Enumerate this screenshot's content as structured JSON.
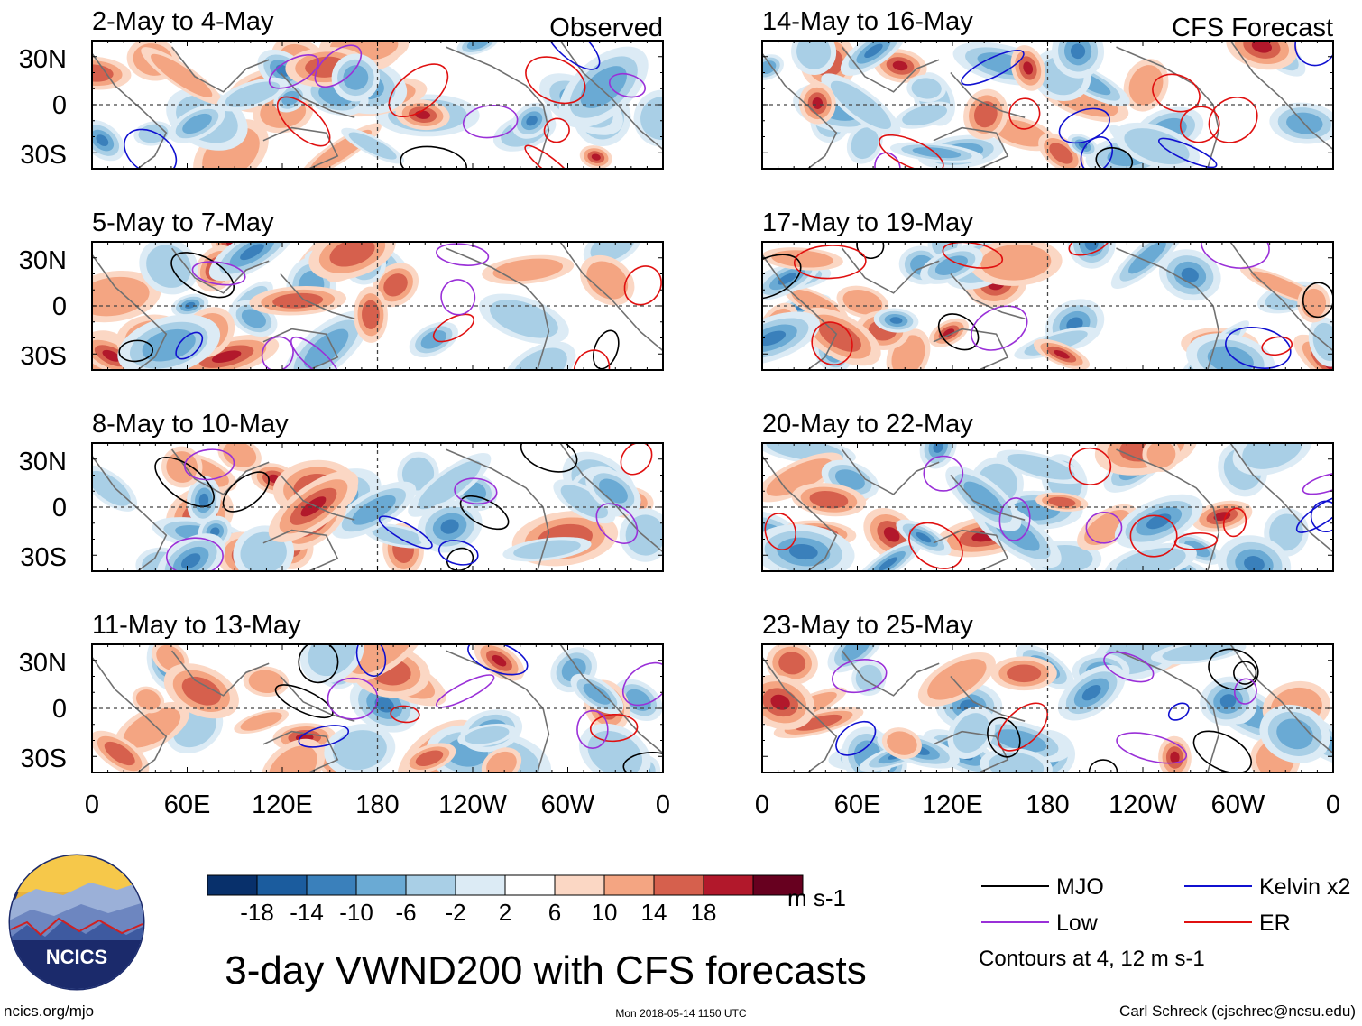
{
  "chart_data": {
    "type": "heatmap",
    "variable": "VWND200",
    "title": "3-day VWND200 with CFS forecasts",
    "x_ticks": [
      "0",
      "60E",
      "120E",
      "180",
      "120W",
      "60W",
      "0"
    ],
    "y_ticks": [
      "30N",
      "0",
      "30S"
    ],
    "xlim": [
      0,
      360
    ],
    "ylim": [
      -40,
      40
    ],
    "panels": [
      {
        "label": "2-May to 4-May",
        "tag": "Observed",
        "column": "left",
        "row": 0
      },
      {
        "label": "5-May to 7-May",
        "tag": "",
        "column": "left",
        "row": 1
      },
      {
        "label": "8-May to 10-May",
        "tag": "",
        "column": "left",
        "row": 2
      },
      {
        "label": "11-May to 13-May",
        "tag": "",
        "column": "left",
        "row": 3
      },
      {
        "label": "14-May to 16-May",
        "tag": "CFS Forecast",
        "column": "right",
        "row": 0
      },
      {
        "label": "17-May to 19-May",
        "tag": "",
        "column": "right",
        "row": 1
      },
      {
        "label": "20-May to 22-May",
        "tag": "",
        "column": "right",
        "row": 2
      },
      {
        "label": "23-May to 25-May",
        "tag": "",
        "column": "right",
        "row": 3
      }
    ],
    "colorbar": {
      "labels": [
        "-18",
        "-14",
        "-10",
        "-6",
        "-2",
        "2",
        "6",
        "10",
        "14",
        "18"
      ],
      "colors": [
        "#08306b",
        "#1b5c9e",
        "#3a80bb",
        "#6aaad4",
        "#a9cfe6",
        "#dcebf5",
        "#ffffff",
        "#fbd7c4",
        "#f4a582",
        "#d6604d",
        "#b2182b",
        "#67001f"
      ],
      "units": "m s-1"
    },
    "legend": [
      {
        "name": "MJO",
        "color": "#000000"
      },
      {
        "name": "Kelvin x2",
        "color": "#1010d0"
      },
      {
        "name": "Low",
        "color": "#9a30d8"
      },
      {
        "name": "ER",
        "color": "#e01010"
      }
    ],
    "contour_note": "Contours at 4, 12 m s-1"
  },
  "logo": {
    "text": "NCICS"
  },
  "footer": {
    "url": "ncics.org/mjo",
    "timestamp": "Mon 2018-05-14 1150 UTC",
    "author": "Carl Schreck (cjschrec@ncsu.edu)"
  }
}
